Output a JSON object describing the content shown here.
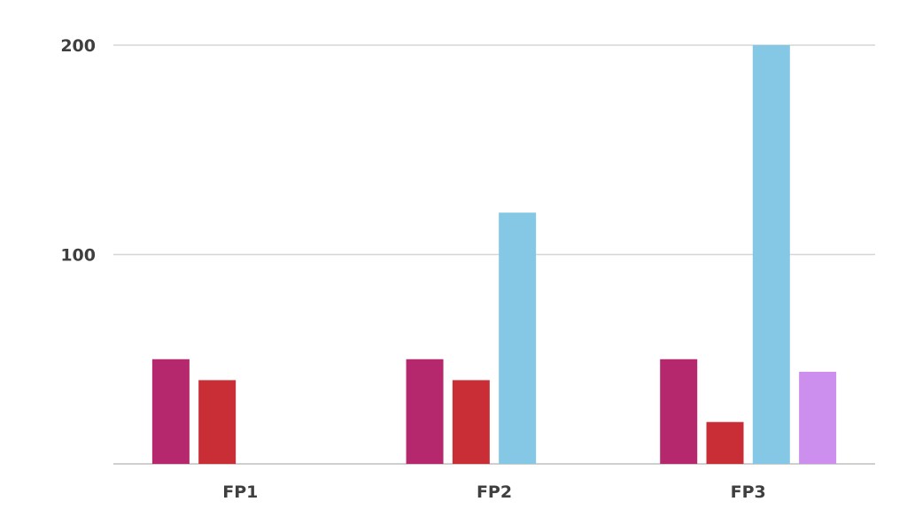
{
  "chart_data": {
    "type": "bar",
    "categories": [
      "FP1",
      "FP2",
      "FP3"
    ],
    "series": [
      {
        "color": "#b5286e",
        "values": [
          50,
          50,
          50
        ]
      },
      {
        "color": "#c92e36",
        "values": [
          40,
          40,
          20
        ]
      },
      {
        "color": "#84c8e6",
        "values": [
          null,
          120,
          200
        ]
      },
      {
        "color": "#cc8fee",
        "values": [
          null,
          null,
          44
        ]
      }
    ],
    "yticks": [
      100,
      200
    ],
    "ylim": [
      0,
      200
    ],
    "grid": true,
    "legend": "none"
  }
}
